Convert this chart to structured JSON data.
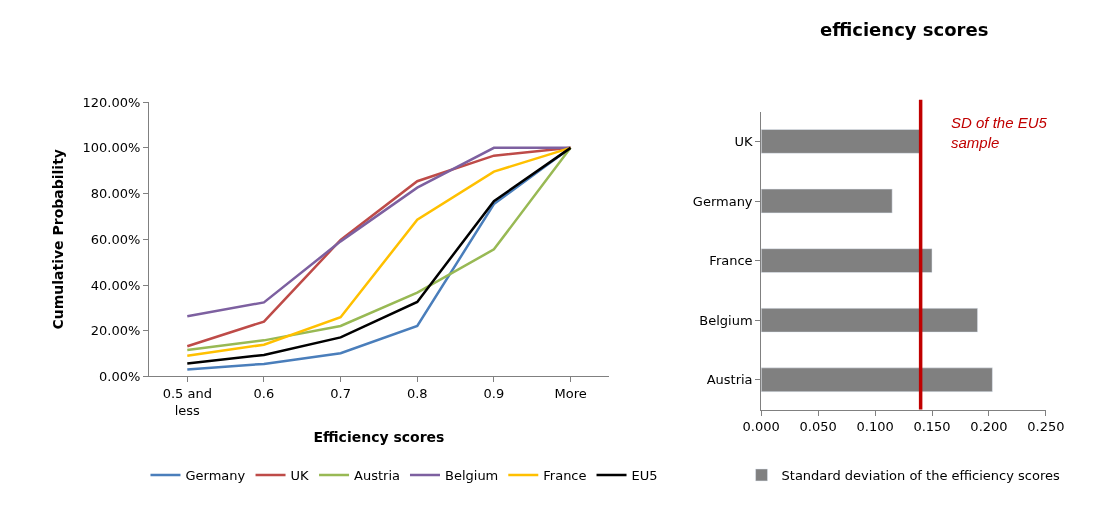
{
  "chart_data": [
    {
      "type": "line",
      "xlabel": "Efficiency scores",
      "ylabel": "Cumulative Probability",
      "categories": [
        "0.5 and less",
        "0.6",
        "0.7",
        "0.8",
        "0.9",
        "More"
      ],
      "ylim": [
        0,
        120
      ],
      "yticks": [
        {
          "value": 0,
          "label": "0.00%"
        },
        {
          "value": 20,
          "label": "20.00%"
        },
        {
          "value": 40,
          "label": "40.00%"
        },
        {
          "value": 60,
          "label": "60.00%"
        },
        {
          "value": 80,
          "label": "80.00%"
        },
        {
          "value": 100,
          "label": "100.00%"
        },
        {
          "value": 120,
          "label": "120.00%"
        }
      ],
      "legend": "bottom",
      "marker": "none",
      "line_style": "solid",
      "series": [
        {
          "name": "Germany",
          "color": "#4a7ebb",
          "values": [
            3.1,
            5.5,
            10.2,
            22.1,
            75.4,
            100
          ]
        },
        {
          "name": "UK",
          "color": "#be4b48",
          "values": [
            13.2,
            24,
            59.7,
            85.4,
            96.6,
            100
          ]
        },
        {
          "name": "Austria",
          "color": "#98b954",
          "values": [
            11.6,
            15.8,
            22.1,
            36.7,
            55.6,
            100
          ]
        },
        {
          "name": "Belgium",
          "color": "#7d60a0",
          "values": [
            26.3,
            32.4,
            59.1,
            82.6,
            100,
            100
          ]
        },
        {
          "name": "France",
          "color": "#ffc000",
          "values": [
            9.1,
            13.9,
            25.9,
            68.6,
            89.6,
            100
          ]
        },
        {
          "name": "EU5",
          "color": "#000000",
          "values": [
            5.7,
            9.4,
            17.1,
            32.6,
            76.7,
            100
          ]
        }
      ]
    },
    {
      "type": "bar",
      "orientation": "horizontal",
      "title": "efficiency scores",
      "categories": [
        "UK",
        "Germany",
        "France",
        "Belgium",
        "Austria"
      ],
      "xlim": [
        0,
        0.25
      ],
      "xticks": [
        {
          "value": 0,
          "label": "0.000"
        },
        {
          "value": 0.05,
          "label": "0.050"
        },
        {
          "value": 0.1,
          "label": "0.100"
        },
        {
          "value": 0.15,
          "label": "0.150"
        },
        {
          "value": 0.2,
          "label": "0.200"
        },
        {
          "value": 0.25,
          "label": "0.250"
        }
      ],
      "legend": "bottom",
      "series": [
        {
          "name": "Standard deviation of the efficiency scores",
          "color": "#808080",
          "values": [
            0.139,
            0.115,
            0.15,
            0.19,
            0.203
          ]
        }
      ],
      "ref_lines": [
        {
          "axis": "x",
          "value": 0.14,
          "label": "SD of the EU5 sample",
          "color": "#c00000"
        }
      ]
    }
  ]
}
